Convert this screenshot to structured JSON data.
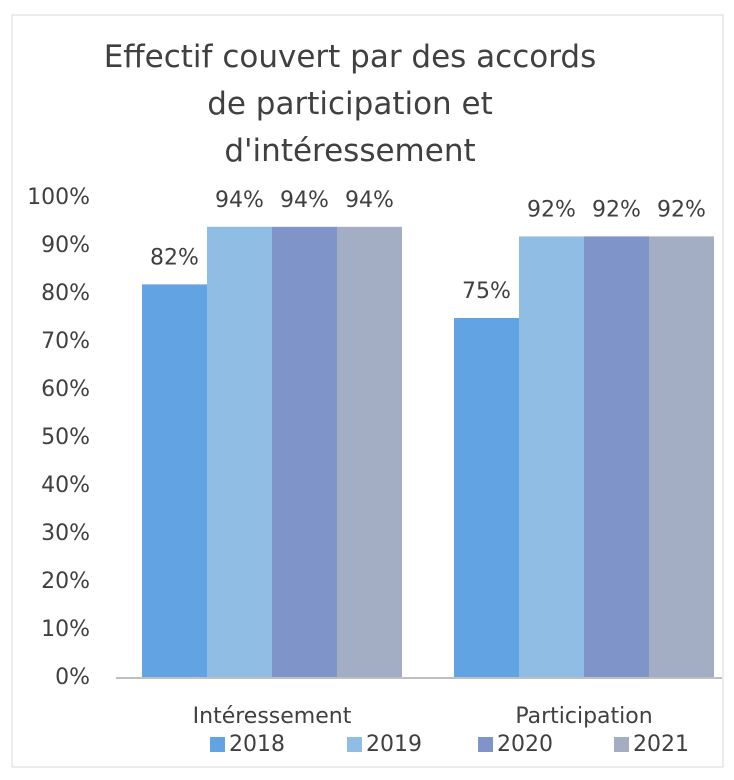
{
  "chart_data": {
    "type": "bar",
    "title": "Effectif couvert par des accords de participation et d'intéressement",
    "categories": [
      "Intéressement",
      "Participation"
    ],
    "series": [
      {
        "name": "2018",
        "color": "#62a3e4",
        "values": [
          82,
          75
        ],
        "value_labels": [
          "82%",
          "75%"
        ]
      },
      {
        "name": "2019",
        "color": "#8fbde3",
        "values": [
          94,
          92
        ],
        "value_labels": [
          "94%",
          "92%"
        ]
      },
      {
        "name": "2020",
        "color": "#7f94c8",
        "values": [
          94,
          92
        ],
        "value_labels": [
          "94%",
          "92%"
        ]
      },
      {
        "name": "2021",
        "color": "#a3aec4",
        "values": [
          94,
          92
        ],
        "value_labels": [
          "94%",
          "92%"
        ]
      }
    ],
    "ylim": [
      0,
      100
    ],
    "yticks": [
      {
        "value": 0,
        "label": "0%"
      },
      {
        "value": 10,
        "label": "10%"
      },
      {
        "value": 20,
        "label": "20%"
      },
      {
        "value": 30,
        "label": "30%"
      },
      {
        "value": 40,
        "label": "40%"
      },
      {
        "value": 50,
        "label": "50%"
      },
      {
        "value": 60,
        "label": "60%"
      },
      {
        "value": 70,
        "label": "70%"
      },
      {
        "value": 80,
        "label": "80%"
      },
      {
        "value": 90,
        "label": "90%"
      },
      {
        "value": 100,
        "label": "100%"
      }
    ],
    "grid": false,
    "legend": "bottom"
  }
}
